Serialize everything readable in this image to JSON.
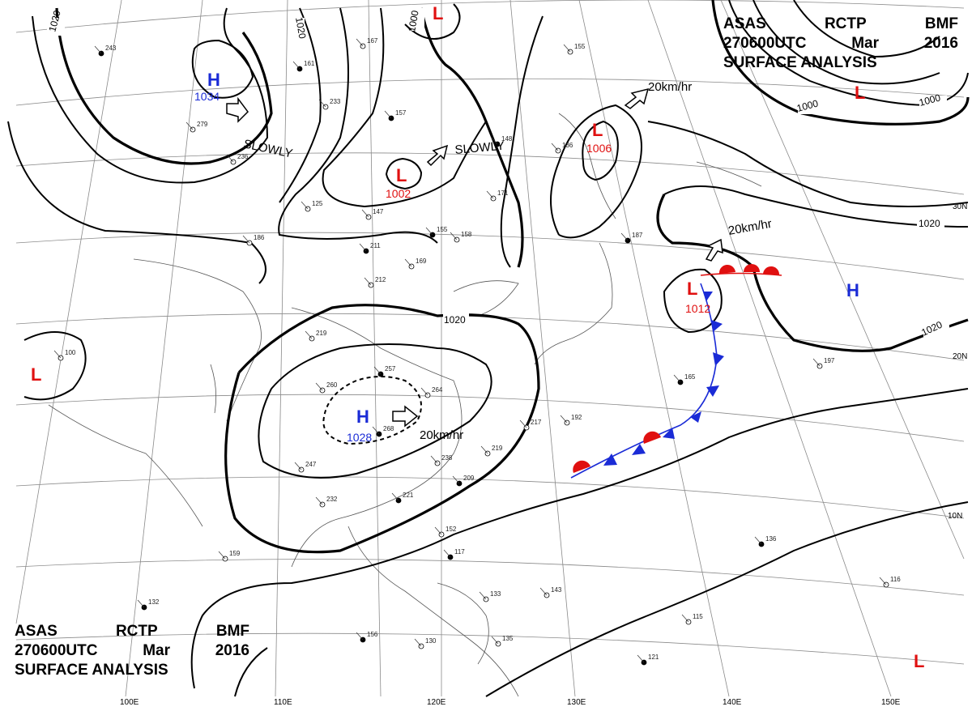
{
  "header": {
    "line1": [
      "ASAS",
      "RCTP",
      "BMF"
    ],
    "line2": [
      "270600UTC",
      "Mar",
      "2016"
    ],
    "line3": "SURFACE ANALYSIS"
  },
  "latitudes": [
    "30N",
    "20N",
    "10N"
  ],
  "longitudes": [
    "100E",
    "110E",
    "120E",
    "130E",
    "140E",
    "150E"
  ],
  "isobar_labels": [
    "1020",
    "1020",
    "1000",
    "1020",
    "1020",
    "1000",
    "1000",
    "1020"
  ],
  "pressure_systems": [
    {
      "type": "H",
      "value": "1034"
    },
    {
      "type": "L",
      "value": "1002"
    },
    {
      "type": "L",
      "value": "1006"
    },
    {
      "type": "L",
      "value": "1012"
    },
    {
      "type": "H",
      "value": "1028"
    },
    {
      "type": "H",
      "value": ""
    },
    {
      "type": "L",
      "value": ""
    },
    {
      "type": "L",
      "value": ""
    },
    {
      "type": "L",
      "value": ""
    },
    {
      "type": "L",
      "value": ""
    }
  ],
  "motions": [
    "SLOWLY",
    "SLOWLY",
    "20km/hr",
    "20km/hr",
    "20km/hr"
  ],
  "colors": {
    "high": "#1a2bd6",
    "low": "#e01010",
    "warm_front": "#e01010",
    "cold_front": "#1a2bd6"
  },
  "station_values": [
    "243",
    "279",
    "236",
    "161",
    "233",
    "167",
    "157",
    "125",
    "147",
    "211",
    "212",
    "169",
    "155",
    "158",
    "171",
    "148",
    "136",
    "155",
    "187",
    "186",
    "219",
    "257",
    "260",
    "264",
    "268",
    "247",
    "232",
    "221",
    "238",
    "219",
    "209",
    "217",
    "192",
    "165",
    "197",
    "152",
    "117",
    "133",
    "143",
    "136",
    "116",
    "115",
    "121",
    "135",
    "159",
    "156",
    "130",
    "100",
    "132"
  ]
}
